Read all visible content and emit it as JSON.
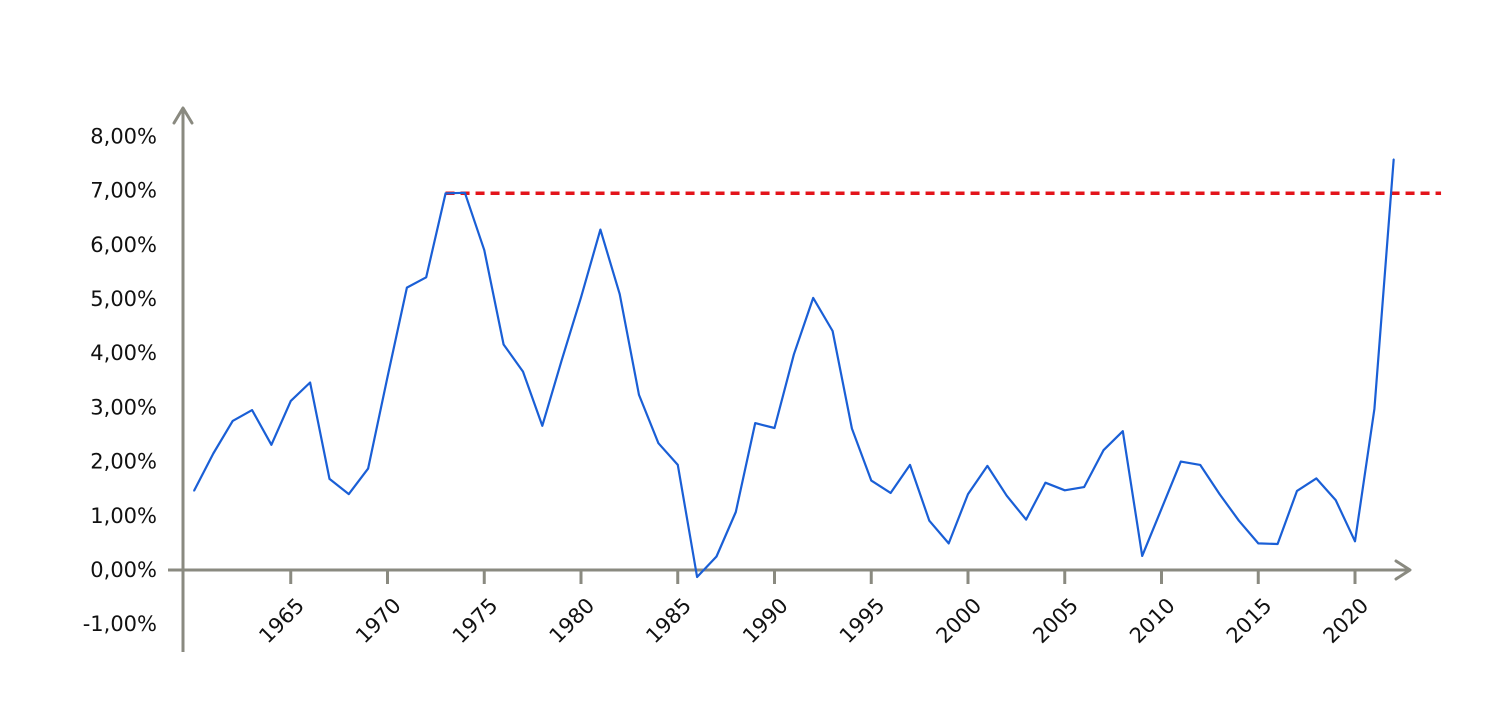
{
  "chart_data": {
    "type": "line",
    "title": "",
    "xlabel": "",
    "ylabel": "",
    "xlim": [
      1960,
      2023
    ],
    "ylim": [
      -1,
      8
    ],
    "y_ticks": [
      8,
      7,
      6,
      5,
      4,
      3,
      2,
      1,
      0,
      -1
    ],
    "y_tick_labels": [
      "8,00%",
      "7,00%",
      "6,00%",
      "5,00%",
      "4,00%",
      "3,00%",
      "2,00%",
      "1,00%",
      "0,00%",
      "-1,00%"
    ],
    "x_ticks": [
      1965,
      1970,
      1975,
      1980,
      1985,
      1990,
      1995,
      2000,
      2005,
      2010,
      2015,
      2020
    ],
    "x_tick_labels": [
      "1965",
      "1970",
      "1975",
      "1980",
      "1985",
      "1990",
      "1995",
      "2000",
      "2005",
      "2010",
      "2015",
      "2020"
    ],
    "grid": false,
    "legend": "none",
    "colors": {
      "series": "#1a5fd6",
      "reference": "#e3141b",
      "axis": "#8a8a80"
    },
    "series": [
      {
        "x": [
          1960,
          1961,
          1962,
          1963,
          1964,
          1965,
          1966,
          1967,
          1968,
          1969,
          1970,
          1971,
          1972,
          1973,
          1974,
          1975,
          1976,
          1977,
          1978,
          1979,
          1980,
          1981,
          1982,
          1983,
          1984,
          1985,
          1986,
          1987,
          1988,
          1989,
          1990,
          1991,
          1992,
          1993,
          1994,
          1995,
          1996,
          1997,
          1998,
          1999,
          2000,
          2001,
          2002,
          2003,
          2004,
          2005,
          2006,
          2007,
          2008,
          2009,
          2010,
          2011,
          2012,
          2013,
          2014,
          2015,
          2016,
          2017,
          2018,
          2019,
          2020,
          2021,
          2022
        ],
        "values": [
          1.46,
          2.15,
          2.75,
          2.95,
          2.31,
          3.12,
          3.46,
          1.68,
          1.4,
          1.87,
          3.56,
          5.21,
          5.4,
          6.95,
          6.96,
          5.9,
          4.16,
          3.66,
          2.66,
          3.87,
          5.03,
          6.28,
          5.09,
          3.23,
          2.34,
          1.94,
          -0.13,
          0.25,
          1.07,
          2.71,
          2.62,
          3.98,
          5.02,
          4.41,
          2.61,
          1.65,
          1.42,
          1.94,
          0.91,
          0.49,
          1.4,
          1.92,
          1.37,
          0.93,
          1.61,
          1.47,
          1.53,
          2.21,
          2.56,
          0.26,
          1.13,
          2.0,
          1.94,
          1.4,
          0.91,
          0.49,
          0.48,
          1.46,
          1.69,
          1.29,
          0.53,
          2.97,
          7.58
        ]
      }
    ],
    "reference_line": {
      "y": 6.95,
      "x_from": 1973,
      "x_to": 2023,
      "style": "dashed"
    }
  }
}
